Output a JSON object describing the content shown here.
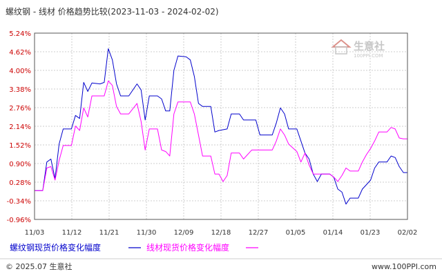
{
  "chart_data": {
    "type": "line",
    "title": "螺纹钢 - 线材 价格趋势比较(2023-11-03 - 2024-02-02)",
    "x_tick_labels": [
      "11/03",
      "11/12",
      "11/21",
      "11/30",
      "12/09",
      "12/18",
      "12/27",
      "01/05",
      "01/14",
      "01/23",
      "02/02"
    ],
    "y_tick_labels": [
      "5.24%",
      "4.62%",
      "4.00%",
      "3.38%",
      "2.76%",
      "2.14%",
      "1.52%",
      "0.90%",
      "0.28%",
      "-0.34%",
      "-0.96%"
    ],
    "ylim": [
      -0.96,
      5.24
    ],
    "x_count": 92,
    "grid": true,
    "legend_position": "bottom-left",
    "series": [
      {
        "name": "螺纹钢现货价格变化幅度",
        "color": "#0000cc",
        "points": [
          [
            0,
            0.0
          ],
          [
            2,
            0.0
          ],
          [
            3,
            0.95
          ],
          [
            4,
            1.05
          ],
          [
            5,
            0.4
          ],
          [
            6,
            1.55
          ],
          [
            7,
            2.05
          ],
          [
            9,
            2.05
          ],
          [
            10,
            2.5
          ],
          [
            11,
            2.4
          ],
          [
            12,
            3.6
          ],
          [
            13,
            3.3
          ],
          [
            14,
            3.58
          ],
          [
            16,
            3.55
          ],
          [
            17,
            3.6
          ],
          [
            18,
            4.72
          ],
          [
            19,
            4.35
          ],
          [
            20,
            3.55
          ],
          [
            21,
            3.15
          ],
          [
            23,
            3.15
          ],
          [
            25,
            3.55
          ],
          [
            26,
            3.35
          ],
          [
            27,
            2.35
          ],
          [
            28,
            3.15
          ],
          [
            30,
            3.15
          ],
          [
            31,
            3.05
          ],
          [
            32,
            2.65
          ],
          [
            33,
            2.65
          ],
          [
            34,
            4.0
          ],
          [
            35,
            4.48
          ],
          [
            37,
            4.45
          ],
          [
            38,
            4.35
          ],
          [
            39,
            3.8
          ],
          [
            40,
            2.9
          ],
          [
            41,
            2.8
          ],
          [
            43,
            2.8
          ],
          [
            44,
            1.95
          ],
          [
            45,
            2.0
          ],
          [
            47,
            2.05
          ],
          [
            48,
            2.55
          ],
          [
            50,
            2.55
          ],
          [
            51,
            2.35
          ],
          [
            53,
            2.35
          ],
          [
            54,
            2.35
          ],
          [
            55,
            1.85
          ],
          [
            58,
            1.85
          ],
          [
            59,
            2.25
          ],
          [
            60,
            2.75
          ],
          [
            61,
            2.55
          ],
          [
            62,
            2.05
          ],
          [
            64,
            2.05
          ],
          [
            65,
            1.65
          ],
          [
            66,
            1.25
          ],
          [
            67,
            1.05
          ],
          [
            68,
            0.55
          ],
          [
            69,
            0.3
          ],
          [
            70,
            0.55
          ],
          [
            72,
            0.55
          ],
          [
            73,
            0.45
          ],
          [
            74,
            0.05
          ],
          [
            75,
            -0.05
          ],
          [
            76,
            -0.45
          ],
          [
            77,
            -0.25
          ],
          [
            79,
            -0.25
          ],
          [
            80,
            0.05
          ],
          [
            81,
            0.2
          ],
          [
            82,
            0.35
          ],
          [
            83,
            0.75
          ],
          [
            84,
            0.95
          ],
          [
            86,
            0.95
          ],
          [
            87,
            1.15
          ],
          [
            88,
            1.1
          ],
          [
            89,
            0.8
          ],
          [
            90,
            0.6
          ],
          [
            91,
            0.6
          ]
        ]
      },
      {
        "name": "线材现货价格变化幅度",
        "color": "#ff00ff",
        "points": [
          [
            0,
            0.0
          ],
          [
            2,
            0.0
          ],
          [
            3,
            0.75
          ],
          [
            4,
            0.8
          ],
          [
            5,
            0.35
          ],
          [
            6,
            1.0
          ],
          [
            7,
            1.5
          ],
          [
            9,
            1.5
          ],
          [
            10,
            2.15
          ],
          [
            11,
            2.0
          ],
          [
            12,
            2.75
          ],
          [
            13,
            2.45
          ],
          [
            14,
            3.15
          ],
          [
            16,
            3.15
          ],
          [
            17,
            3.15
          ],
          [
            18,
            3.65
          ],
          [
            19,
            3.5
          ],
          [
            20,
            2.8
          ],
          [
            21,
            2.55
          ],
          [
            23,
            2.55
          ],
          [
            25,
            2.9
          ],
          [
            26,
            2.3
          ],
          [
            27,
            1.35
          ],
          [
            28,
            2.05
          ],
          [
            30,
            2.05
          ],
          [
            31,
            1.35
          ],
          [
            32,
            1.3
          ],
          [
            33,
            1.15
          ],
          [
            34,
            2.55
          ],
          [
            35,
            2.95
          ],
          [
            37,
            2.95
          ],
          [
            38,
            2.95
          ],
          [
            39,
            2.55
          ],
          [
            40,
            1.85
          ],
          [
            41,
            1.15
          ],
          [
            43,
            1.15
          ],
          [
            44,
            0.55
          ],
          [
            45,
            0.55
          ],
          [
            46,
            0.3
          ],
          [
            47,
            0.5
          ],
          [
            48,
            1.25
          ],
          [
            50,
            1.25
          ],
          [
            51,
            1.05
          ],
          [
            53,
            1.35
          ],
          [
            54,
            1.35
          ],
          [
            55,
            1.35
          ],
          [
            58,
            1.35
          ],
          [
            59,
            1.65
          ],
          [
            60,
            2.05
          ],
          [
            61,
            1.85
          ],
          [
            62,
            1.55
          ],
          [
            64,
            1.3
          ],
          [
            65,
            0.95
          ],
          [
            66,
            1.25
          ],
          [
            67,
            0.85
          ],
          [
            68,
            0.55
          ],
          [
            69,
            0.55
          ],
          [
            70,
            0.55
          ],
          [
            72,
            0.55
          ],
          [
            73,
            0.45
          ],
          [
            74,
            0.3
          ],
          [
            75,
            0.5
          ],
          [
            76,
            0.75
          ],
          [
            77,
            0.65
          ],
          [
            79,
            0.65
          ],
          [
            80,
            0.95
          ],
          [
            81,
            1.2
          ],
          [
            82,
            1.4
          ],
          [
            83,
            1.65
          ],
          [
            84,
            1.95
          ],
          [
            86,
            1.95
          ],
          [
            87,
            2.1
          ],
          [
            88,
            2.05
          ],
          [
            89,
            1.75
          ],
          [
            90,
            1.72
          ],
          [
            91,
            1.72
          ]
        ]
      }
    ]
  },
  "watermark": {
    "brand": "生意社",
    "domain": "100PPI.COM"
  },
  "footer": {
    "copyright": "© 2025.07 生意社",
    "site": "www.100PPI.com"
  }
}
